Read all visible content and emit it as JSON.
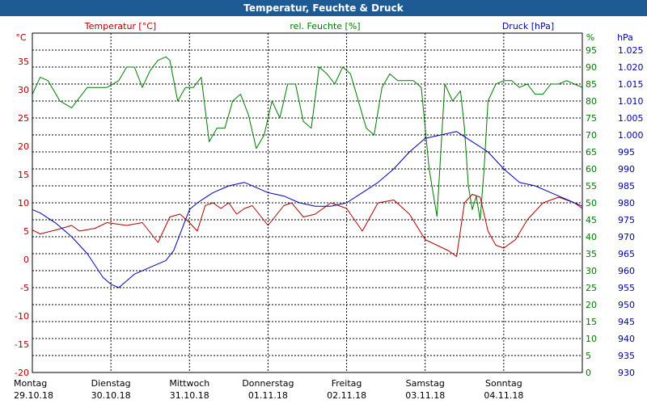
{
  "window": {
    "title": "Temperatur, Feuchte & Druck"
  },
  "chart_data": {
    "type": "line",
    "title": "Temperatur, Feuchte & Druck",
    "colors": {
      "temperature": "#b00000",
      "humidity": "#007a00",
      "pressure": "#0000b4",
      "title_bar": "#1e5b94"
    },
    "x_range": [
      0,
      7
    ],
    "x_labels": [
      {
        "day": "Montag",
        "date": "29.10.18"
      },
      {
        "day": "Dienstag",
        "date": "30.10.18"
      },
      {
        "day": "Mittwoch",
        "date": "31.10.18"
      },
      {
        "day": "Donnerstag",
        "date": "01.11.18"
      },
      {
        "day": "Freitag",
        "date": "02.11.18"
      },
      {
        "day": "Samstag",
        "date": "03.11.18"
      },
      {
        "day": "Sonntag",
        "date": "04.11.18"
      }
    ],
    "axes": {
      "temperature": {
        "unit": "°C",
        "label": "Temperatur [°C]",
        "min": -20,
        "max": 40,
        "ticks": [
          "-20",
          "-15",
          "-10",
          "-5",
          "0",
          "5",
          "10",
          "15",
          "20",
          "25",
          "30",
          "35"
        ]
      },
      "humidity": {
        "unit": "%",
        "label": "rel. Feuchte [%]",
        "min": 0,
        "max": 100,
        "ticks": [
          "0",
          "5",
          "10",
          "15",
          "20",
          "25",
          "30",
          "35",
          "40",
          "45",
          "50",
          "55",
          "60",
          "65",
          "70",
          "75",
          "80",
          "85",
          "90",
          "95"
        ]
      },
      "pressure": {
        "unit": "hPa",
        "label": "Druck [hPa]",
        "min": 930,
        "max": 1030,
        "ticks": [
          "930",
          "935",
          "940",
          "945",
          "950",
          "955",
          "960",
          "965",
          "970",
          "975",
          "980",
          "985",
          "990",
          "995",
          "1.000",
          "1.005",
          "1.010",
          "1.015",
          "1.020",
          "1.025"
        ]
      }
    },
    "series": [
      {
        "name": "Temperatur",
        "key": "temperature",
        "x": [
          0,
          0.1,
          0.3,
          0.5,
          0.6,
          0.8,
          0.95,
          1.2,
          1.4,
          1.6,
          1.75,
          1.88,
          2.0,
          2.1,
          2.2,
          2.3,
          2.4,
          2.5,
          2.6,
          2.7,
          2.8,
          3.0,
          3.2,
          3.3,
          3.45,
          3.6,
          3.8,
          4.0,
          4.2,
          4.4,
          4.6,
          4.8,
          5.0,
          5.15,
          5.3,
          5.4,
          5.5,
          5.6,
          5.7,
          5.8,
          5.9,
          6.0,
          6.15,
          6.3,
          6.5,
          6.7,
          6.9,
          7.0
        ],
        "values": [
          5.2,
          4.5,
          5.2,
          6.0,
          5.0,
          5.5,
          6.5,
          6.0,
          6.5,
          3.0,
          7.5,
          8.0,
          6.5,
          5.0,
          9.5,
          10.0,
          9.0,
          10.0,
          8.0,
          9.0,
          9.5,
          6.0,
          9.5,
          10.0,
          7.5,
          8.0,
          10.0,
          9.0,
          5.0,
          10.0,
          10.5,
          8.0,
          3.5,
          2.5,
          1.5,
          0.5,
          10.0,
          11.5,
          11.0,
          5.0,
          2.5,
          2.0,
          3.5,
          7.0,
          10.0,
          11.0,
          10.0,
          9.0
        ]
      },
      {
        "name": "rel. Feuchte",
        "key": "humidity",
        "x": [
          0,
          0.1,
          0.2,
          0.35,
          0.5,
          0.7,
          0.8,
          0.95,
          1.1,
          1.2,
          1.3,
          1.4,
          1.5,
          1.6,
          1.7,
          1.75,
          1.85,
          1.95,
          2.05,
          2.15,
          2.25,
          2.35,
          2.45,
          2.55,
          2.65,
          2.75,
          2.85,
          2.95,
          3.05,
          3.15,
          3.25,
          3.35,
          3.45,
          3.55,
          3.65,
          3.75,
          3.85,
          3.95,
          4.05,
          4.15,
          4.25,
          4.35,
          4.45,
          4.55,
          4.65,
          4.75,
          4.85,
          4.95,
          5.05,
          5.15,
          5.25,
          5.35,
          5.45,
          5.5,
          5.55,
          5.6,
          5.65,
          5.7,
          5.75,
          5.8,
          5.9,
          6.0,
          6.1,
          6.2,
          6.3,
          6.4,
          6.5,
          6.6,
          6.7,
          6.8,
          6.9,
          7.0
        ],
        "values": [
          82,
          87,
          86,
          80,
          78,
          84,
          84,
          84,
          86,
          90,
          90,
          84,
          89,
          92,
          93,
          92,
          80,
          84,
          84,
          87,
          68,
          72,
          72,
          80,
          82,
          76,
          66,
          70,
          80,
          75,
          85,
          85,
          74,
          72,
          90,
          88,
          85,
          90,
          88,
          80,
          72,
          70,
          84,
          88,
          86,
          86,
          86,
          84,
          60,
          46,
          85,
          80,
          83,
          72,
          55,
          48,
          52,
          45,
          60,
          80,
          85,
          86,
          86,
          84,
          85,
          82,
          82,
          85,
          85,
          86,
          85,
          84
        ]
      },
      {
        "name": "Druck",
        "key": "pressure",
        "x": [
          0,
          0.1,
          0.3,
          0.5,
          0.7,
          0.9,
          1.0,
          1.1,
          1.2,
          1.3,
          1.5,
          1.7,
          1.8,
          1.9,
          2.0,
          2.1,
          2.3,
          2.5,
          2.7,
          2.9,
          3.0,
          3.2,
          3.4,
          3.6,
          3.8,
          4.0,
          4.2,
          4.4,
          4.6,
          4.8,
          5.0,
          5.2,
          5.4,
          5.6,
          5.8,
          6.0,
          6.2,
          6.4,
          6.6,
          6.8,
          7.0
        ],
        "values": [
          978,
          977,
          974,
          970,
          965,
          958,
          956,
          955,
          957,
          959,
          961,
          963,
          966,
          972,
          978,
          980,
          983,
          985,
          986,
          984,
          983,
          982,
          980,
          979,
          979,
          980,
          983,
          986,
          990,
          995,
          999,
          1000,
          1001,
          998,
          995,
          990,
          986,
          985,
          983,
          981,
          979
        ]
      }
    ]
  }
}
